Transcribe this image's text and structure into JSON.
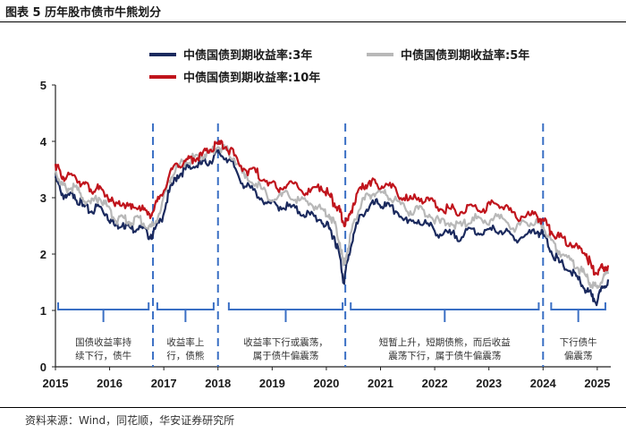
{
  "figure": {
    "title": "图表 5  历年股市债市牛熊划分",
    "source": "资料来源：Wind，同花顺，华安证券研究所"
  },
  "chart_data": {
    "type": "line",
    "title": "历年股市债市牛熊划分",
    "ylim": [
      0,
      5
    ],
    "yticks": [
      "0",
      "1",
      "2",
      "3",
      "4",
      "5"
    ],
    "xlim": [
      2015.0,
      2025.25
    ],
    "xticks": [
      "2015",
      "2016",
      "2017",
      "2018",
      "2019",
      "2020",
      "2021",
      "2022",
      "2023",
      "2024",
      "2025"
    ],
    "legend_position": "top-center",
    "x": [
      2015.0,
      2015.1,
      2015.2,
      2015.35,
      2015.5,
      2015.65,
      2015.8,
      2015.95,
      2016.1,
      2016.25,
      2016.4,
      2016.55,
      2016.7,
      2016.8,
      2016.95,
      2017.1,
      2017.25,
      2017.4,
      2017.55,
      2017.7,
      2017.85,
      2018.0,
      2018.15,
      2018.3,
      2018.5,
      2018.7,
      2018.9,
      2019.1,
      2019.3,
      2019.5,
      2019.7,
      2019.9,
      2020.05,
      2020.15,
      2020.25,
      2020.32,
      2020.4,
      2020.5,
      2020.65,
      2020.8,
      2020.95,
      2021.1,
      2021.3,
      2021.5,
      2021.7,
      2021.9,
      2022.1,
      2022.3,
      2022.5,
      2022.7,
      2022.9,
      2023.1,
      2023.3,
      2023.5,
      2023.7,
      2023.9,
      2024.0,
      2024.15,
      2024.3,
      2024.5,
      2024.65,
      2024.8,
      2024.9,
      2025.0,
      2025.1,
      2025.2
    ],
    "series": [
      {
        "name": "中债国债到期收益率:3年",
        "color": "#1b2a5e",
        "values": [
          3.35,
          3.1,
          3.0,
          3.05,
          2.85,
          2.75,
          2.85,
          2.7,
          2.5,
          2.55,
          2.45,
          2.5,
          2.35,
          2.35,
          2.6,
          3.1,
          3.4,
          3.5,
          3.55,
          3.6,
          3.65,
          3.8,
          3.7,
          3.55,
          3.2,
          3.1,
          2.9,
          2.85,
          2.85,
          2.75,
          2.7,
          2.6,
          2.45,
          2.3,
          1.95,
          1.5,
          1.9,
          2.35,
          2.7,
          2.85,
          2.9,
          2.85,
          2.75,
          2.55,
          2.6,
          2.5,
          2.35,
          2.35,
          2.3,
          2.45,
          2.35,
          2.45,
          2.4,
          2.25,
          2.35,
          2.4,
          2.35,
          2.05,
          1.85,
          1.7,
          1.55,
          1.35,
          1.25,
          1.15,
          1.4,
          1.55
        ]
      },
      {
        "name": "中债国债到期收益率:5年",
        "color": "#b8b8b8",
        "values": [
          3.5,
          3.25,
          3.15,
          3.2,
          3.0,
          2.9,
          3.0,
          2.85,
          2.6,
          2.65,
          2.55,
          2.65,
          2.45,
          2.5,
          2.8,
          3.3,
          3.55,
          3.65,
          3.7,
          3.75,
          3.8,
          3.9,
          3.85,
          3.7,
          3.35,
          3.25,
          3.05,
          3.0,
          3.05,
          2.95,
          2.9,
          2.8,
          2.7,
          2.55,
          2.2,
          1.8,
          2.1,
          2.55,
          2.9,
          3.05,
          3.1,
          3.05,
          2.95,
          2.75,
          2.8,
          2.7,
          2.55,
          2.55,
          2.5,
          2.65,
          2.55,
          2.65,
          2.6,
          2.45,
          2.55,
          2.55,
          2.5,
          2.25,
          2.05,
          1.9,
          1.75,
          1.6,
          1.45,
          1.4,
          1.55,
          1.65
        ]
      },
      {
        "name": "中债国债到期收益率:10年",
        "color": "#c0141c",
        "values": [
          3.6,
          3.4,
          3.35,
          3.4,
          3.25,
          3.15,
          3.15,
          3.05,
          2.85,
          2.9,
          2.8,
          2.85,
          2.7,
          2.75,
          3.05,
          3.4,
          3.6,
          3.65,
          3.7,
          3.75,
          3.85,
          3.95,
          3.9,
          3.75,
          3.5,
          3.45,
          3.3,
          3.15,
          3.25,
          3.15,
          3.1,
          3.2,
          3.05,
          2.9,
          2.75,
          2.55,
          2.6,
          2.9,
          3.15,
          3.3,
          3.2,
          3.25,
          3.1,
          2.95,
          3.0,
          2.95,
          2.8,
          2.8,
          2.75,
          2.85,
          2.8,
          2.9,
          2.85,
          2.65,
          2.7,
          2.65,
          2.6,
          2.4,
          2.3,
          2.2,
          2.1,
          2.0,
          1.75,
          1.65,
          1.75,
          1.8
        ]
      }
    ],
    "phase_dividers_x": [
      2016.8,
      2018.0,
      2020.35,
      2024.0
    ],
    "phases": [
      {
        "label_lines": [
          "国债收益率持",
          "续下行，债牛"
        ],
        "x_start": 2015.05,
        "x_end": 2016.72
      },
      {
        "label_lines": [
          "收益率上",
          "行，债熊"
        ],
        "x_start": 2016.88,
        "x_end": 2017.92
      },
      {
        "label_lines": [
          "收益率下行或震荡，",
          "属于债牛偏震荡"
        ],
        "x_start": 2018.2,
        "x_end": 2020.3
      },
      {
        "label_lines": [
          "短暂上升，短期债熊，而后收益",
          "震荡下行，属于债牛偏震荡"
        ],
        "x_start": 2020.45,
        "x_end": 2023.92
      },
      {
        "label_lines": [
          "下行债牛",
          "偏震荡"
        ],
        "x_start": 2024.15,
        "x_end": 2025.15
      }
    ]
  }
}
